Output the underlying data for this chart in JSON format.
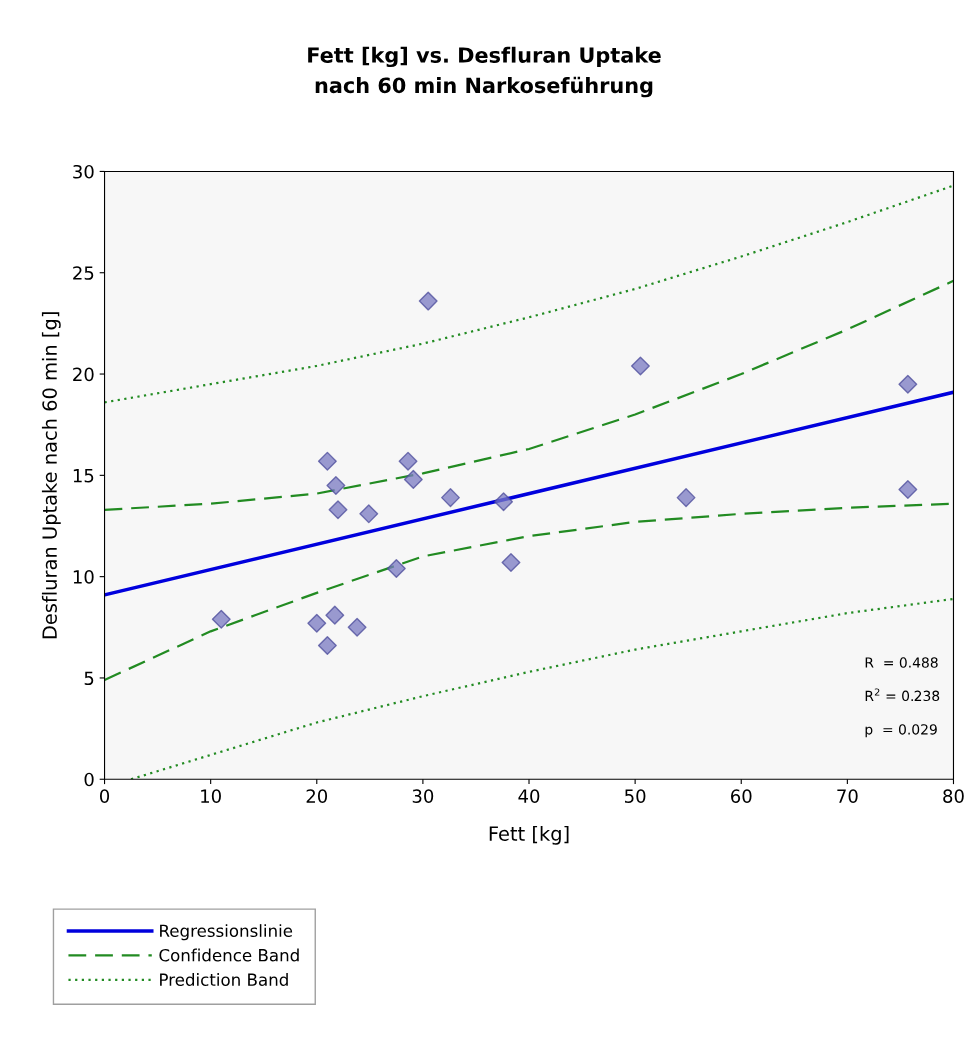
{
  "chart_data": {
    "type": "scatter",
    "title": "Fett [kg] vs. Desfluran Uptake\nnach 60 min Narkoseführung",
    "xlabel": "Fett [kg]",
    "ylabel": "Desfluran Uptake nach 60 min [g]",
    "xlim": [
      0,
      80
    ],
    "ylim": [
      0,
      30
    ],
    "xticks": [
      0,
      10,
      20,
      30,
      40,
      50,
      60,
      70,
      80
    ],
    "yticks": [
      0,
      5,
      10,
      15,
      20,
      25,
      30
    ],
    "grid": false,
    "legend": "bottom",
    "annotations": [
      "R  = 0.488",
      "R$^{2}$ = 0.238",
      "p  = 0.029"
    ],
    "series": [
      {
        "color": "#7a7ac2",
        "marker": "diamond",
        "x": [
          11,
          20,
          21,
          21,
          21.7,
          21.8,
          22,
          23.8,
          24.9,
          27.5,
          28.6,
          29.1,
          30.5,
          32.6,
          37.6,
          38.3,
          50.5,
          54.8,
          75.7,
          75.7
        ],
        "values": [
          7.9,
          7.7,
          6.6,
          15.7,
          8.1,
          14.5,
          13.3,
          7.5,
          13.1,
          10.4,
          15.7,
          14.8,
          23.6,
          13.9,
          13.7,
          10.7,
          20.4,
          13.9,
          19.5,
          14.3
        ]
      },
      {
        "type": "line",
        "name": "Regressionslinie",
        "color": "#0000dd",
        "line_style": "solid",
        "x": [
          0,
          80
        ],
        "values": [
          9.1,
          19.1
        ]
      },
      {
        "type": "line",
        "name": "Confidence Band",
        "color": "#228b22",
        "line_style": "dashed",
        "x": [
          0,
          10,
          20,
          30,
          40,
          50,
          60,
          70,
          80
        ],
        "values": [
          13.3,
          13.6,
          14.1,
          15.1,
          16.3,
          18.0,
          20.0,
          22.2,
          24.6
        ]
      },
      {
        "type": "line",
        "color": "#228b22",
        "line_style": "dashed",
        "x": [
          0,
          10,
          20,
          30,
          40,
          50,
          60,
          70,
          80
        ],
        "values": [
          4.9,
          7.3,
          9.2,
          11.0,
          12.0,
          12.7,
          13.1,
          13.4,
          13.6
        ]
      },
      {
        "type": "line",
        "name": "Prediction Band",
        "color": "#228b22",
        "line_style": "dotted",
        "x": [
          0,
          10,
          20,
          30,
          40,
          50,
          60,
          70,
          80
        ],
        "values": [
          18.6,
          19.5,
          20.4,
          21.5,
          22.8,
          24.2,
          25.8,
          27.5,
          29.3
        ]
      },
      {
        "type": "line",
        "color": "#228b22",
        "line_style": "dotted",
        "x": [
          2.5,
          10,
          20,
          30,
          40,
          50,
          60,
          70,
          80
        ],
        "values": [
          0,
          1.2,
          2.8,
          4.1,
          5.3,
          6.4,
          7.3,
          8.2,
          8.9
        ]
      }
    ]
  }
}
